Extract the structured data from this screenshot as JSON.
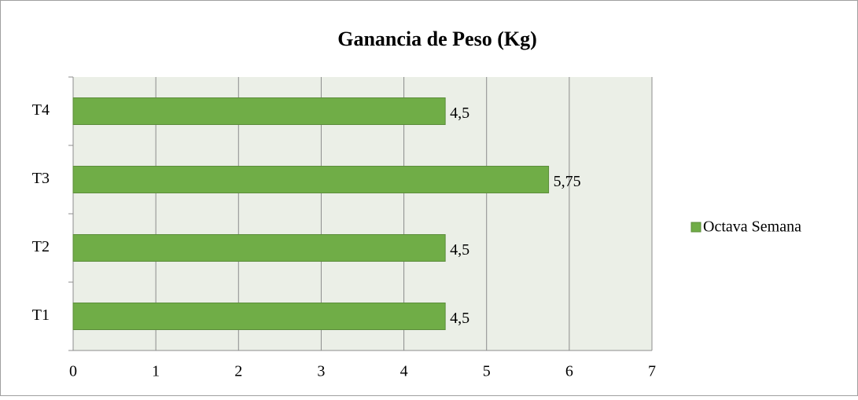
{
  "chart_data": {
    "type": "bar",
    "orientation": "horizontal",
    "title": "Ganancia de Peso (Kg)",
    "categories": [
      "T1",
      "T2",
      "T3",
      "T4"
    ],
    "series": [
      {
        "name": "Octava Semana",
        "color": "#70ad47",
        "values": [
          4.5,
          4.5,
          5.75,
          4.5
        ],
        "value_labels": [
          "4,5",
          "4,5",
          "5,75",
          "4,5"
        ]
      }
    ],
    "xlim": [
      0,
      7
    ],
    "xticks": [
      0,
      1,
      2,
      3,
      4,
      5,
      6,
      7
    ],
    "grid": true,
    "legend": "right"
  }
}
